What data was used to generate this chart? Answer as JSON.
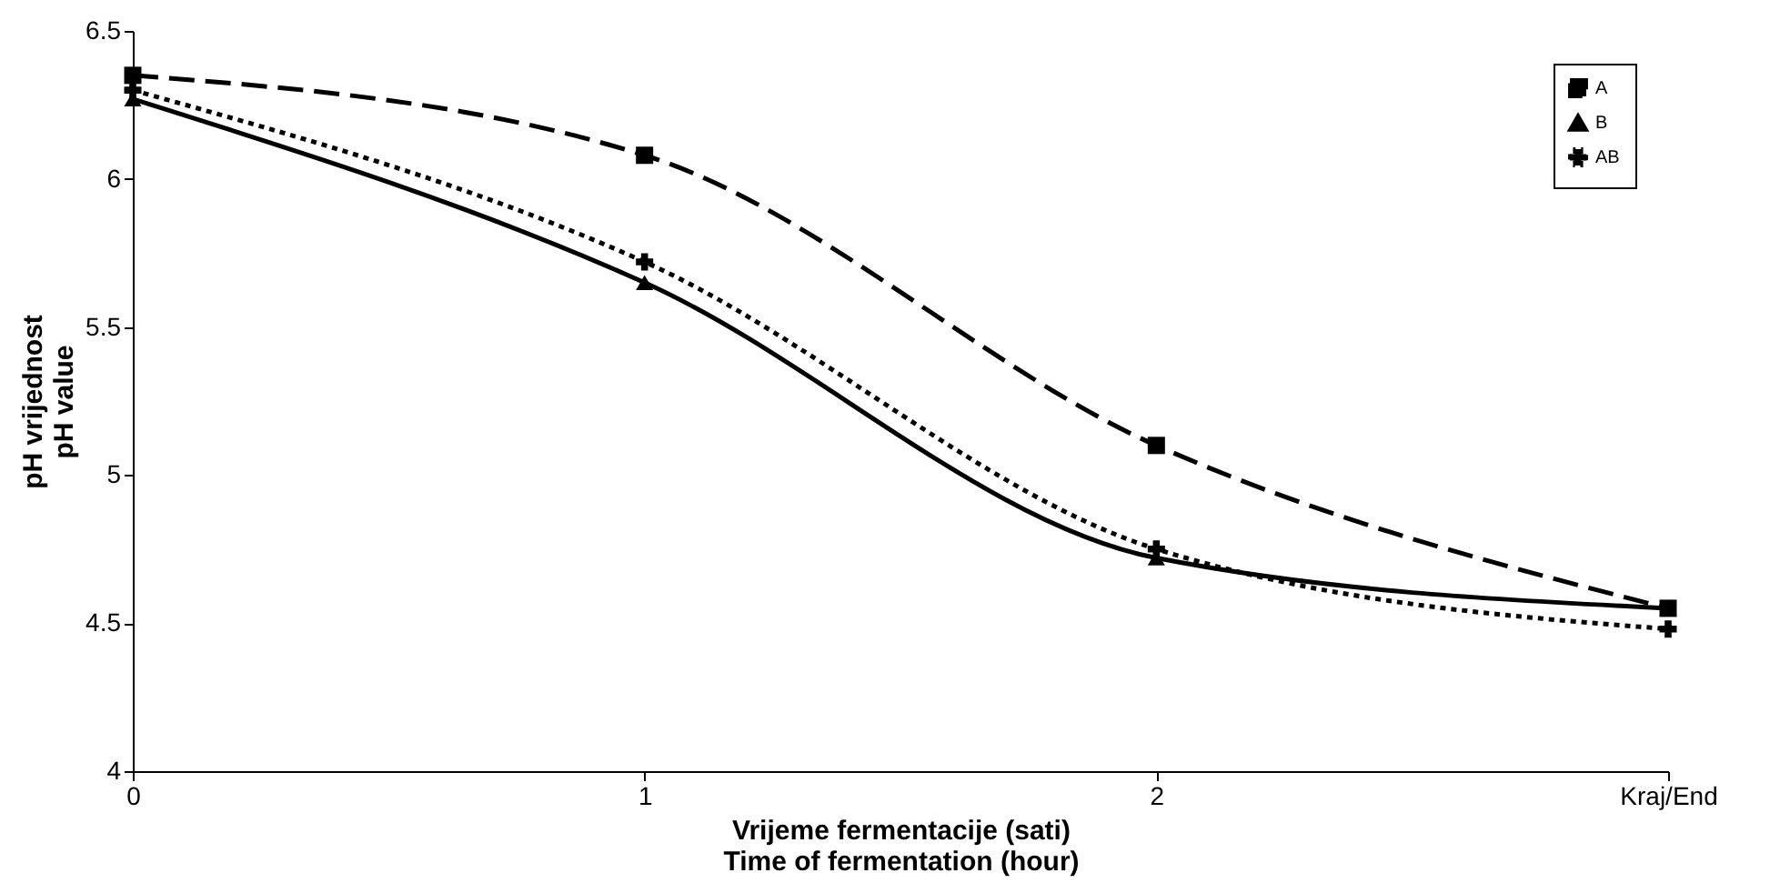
{
  "chart_data": {
    "type": "line",
    "xlabel": "Vrijeme fermentacije (sati)\nTime of fermentation (hour)",
    "ylabel": "pH vrijednost\npH value",
    "categories": [
      "0",
      "1",
      "2",
      "Kraj/End"
    ],
    "series": [
      {
        "name": "A",
        "color": "#000000",
        "values": [
          6.35,
          6.08,
          5.1,
          4.55
        ],
        "line_style": "dashed",
        "marker": "square"
      },
      {
        "name": "B",
        "color": "#000000",
        "values": [
          6.27,
          5.65,
          4.72,
          4.55
        ],
        "line_style": "solid",
        "marker": "triangle"
      },
      {
        "name": "AB",
        "color": "#000000",
        "values": [
          6.3,
          5.72,
          4.75,
          4.48
        ],
        "line_style": "dotted",
        "marker": "cross"
      }
    ],
    "ylim": [
      4,
      6.5
    ],
    "yticks": [
      4,
      4.5,
      5,
      5.5,
      6,
      6.5
    ],
    "grid": false,
    "legend": "top right"
  }
}
